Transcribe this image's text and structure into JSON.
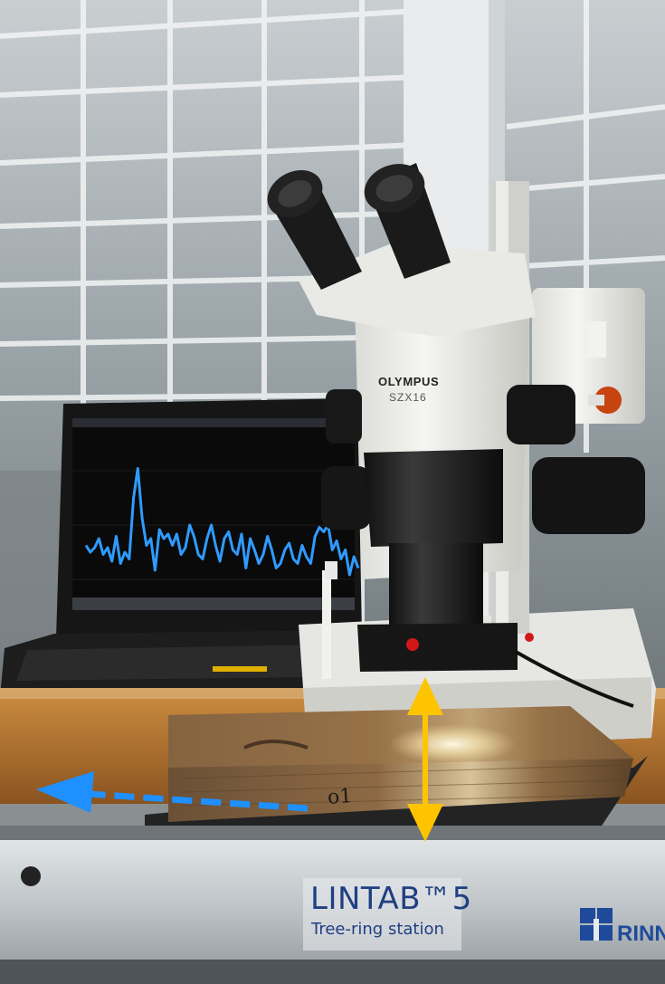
{
  "station": {
    "title": "LINTAB™5",
    "subtitle": "Tree-ring station",
    "brand": "RINN"
  },
  "microscope": {
    "brand": "OLYMPUS",
    "model": "SZX16"
  },
  "sample": {
    "label": "o1"
  },
  "colors": {
    "curve": "#2f9bff",
    "horizontal_arrow": "#1e90ff",
    "vertical_arrow": "#ffc400",
    "brand_blue": "#1f4a9c"
  },
  "screen_curve": {
    "y": [
      30,
      24,
      28,
      36,
      22,
      28,
      16,
      38,
      14,
      24,
      18,
      72,
      98,
      54,
      30,
      36,
      8,
      44,
      36,
      40,
      30,
      40,
      22,
      28,
      48,
      38,
      22,
      18,
      36,
      48,
      30,
      16,
      36,
      42,
      26,
      22,
      40,
      10,
      36,
      26,
      14,
      22,
      38,
      26,
      10,
      14,
      26,
      32,
      18,
      14,
      30,
      20,
      14,
      38,
      46,
      42,
      48,
      26,
      34,
      18,
      26,
      4,
      20,
      10
    ]
  }
}
